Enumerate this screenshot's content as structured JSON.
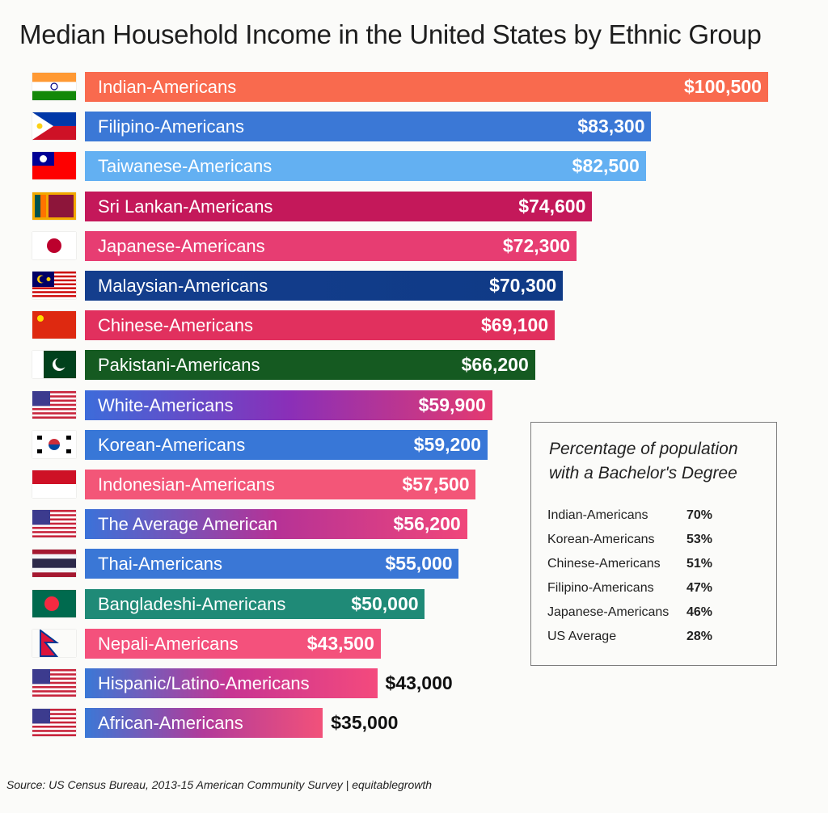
{
  "chart_data": {
    "type": "bar",
    "orientation": "horizontal",
    "title": "Median Household Income in the United States  by Ethnic Group",
    "categories": [
      "Indian-Americans",
      "Filipino-Americans",
      "Taiwanese-Americans",
      "Sri Lankan-Americans",
      "Japanese-Americans",
      "Malaysian-Americans",
      "Chinese-Americans",
      "Pakistani-Americans",
      "White-Americans",
      "Korean-Americans",
      "Indonesian-Americans",
      "The Average American",
      "Thai-Americans",
      "Bangladeshi-Americans",
      "Nepali-Americans",
      "Hispanic/Latino-Americans",
      "African-Americans"
    ],
    "values": [
      100500,
      83300,
      82500,
      74600,
      72300,
      70300,
      69100,
      66200,
      59900,
      59200,
      57500,
      56200,
      55000,
      50000,
      43500,
      43000,
      35000
    ],
    "value_labels": [
      "$100,500",
      "$83,300",
      "$82,500",
      "$74,600",
      "$72,300",
      "$70,300",
      "$69,100",
      "$66,200",
      "$59,900",
      "$59,200",
      "$57,500",
      "$56,200",
      "$55,000",
      "$50,000",
      "$43,500",
      "$43,000",
      "$35,000"
    ],
    "flags": [
      "india",
      "philippines",
      "taiwan",
      "sri-lanka",
      "japan",
      "malaysia",
      "china",
      "pakistan",
      "usa",
      "south-korea",
      "indonesia",
      "usa",
      "thailand",
      "bangladesh",
      "nepal",
      "usa",
      "usa"
    ],
    "bar_colors": [
      "#f96a4e",
      "#3b78d6",
      "#63b0f2",
      "#c4185a",
      "#e73d72",
      [
        "#143e8d",
        "#0f3a86"
      ],
      "#e1305e",
      "#155a21",
      [
        "#3d6cda",
        "#8a2fb8",
        "#e43a70"
      ],
      "#3877d7",
      "#f35678",
      [
        "#3b72d9",
        "#b63296",
        "#f0467a"
      ],
      "#3a77d6",
      "#1f8a77",
      "#f4517c",
      [
        "#3a78d6",
        "#c83492",
        "#f44a7d"
      ],
      [
        "#3b78d6",
        "#b23b9a",
        "#f2517a"
      ]
    ],
    "xlim": [
      0,
      100500
    ],
    "grid": false,
    "legend": "none"
  },
  "inset_table": {
    "title": "Percentage of population with a Bachelor's Degree",
    "rows": [
      {
        "group": "Indian-Americans",
        "percent": "70%"
      },
      {
        "group": "Korean-Americans",
        "percent": "53%"
      },
      {
        "group": "Chinese-Americans",
        "percent": "51%"
      },
      {
        "group": "Filipino-Americans",
        "percent": "47%"
      },
      {
        "group": "Japanese-Americans",
        "percent": "46%"
      },
      {
        "group": "US Average",
        "percent": "28%"
      }
    ]
  },
  "source": "Source: US Census Bureau, 2013-15 American Community Survey | equitablegrowth"
}
